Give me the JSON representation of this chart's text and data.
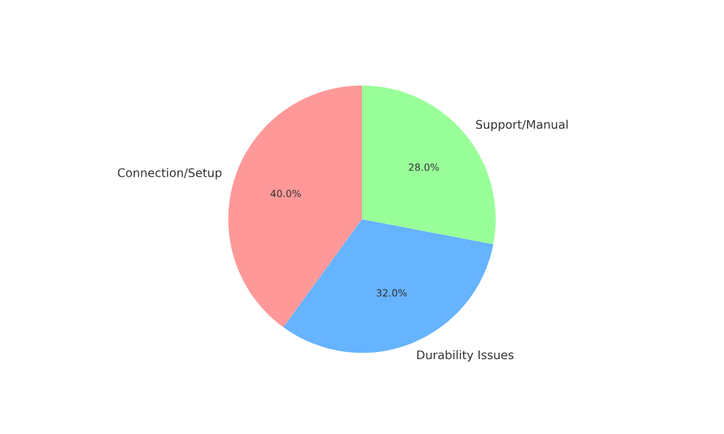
{
  "chart_data": {
    "type": "pie",
    "categories": [
      "Connection/Setup",
      "Durability Issues",
      "Support/Manual"
    ],
    "values": [
      40,
      32,
      28
    ],
    "colors": [
      "#ff9999",
      "#66b3ff",
      "#99ff99"
    ],
    "value_labels": [
      "40.0%",
      "32.0%",
      "28.0%"
    ]
  }
}
